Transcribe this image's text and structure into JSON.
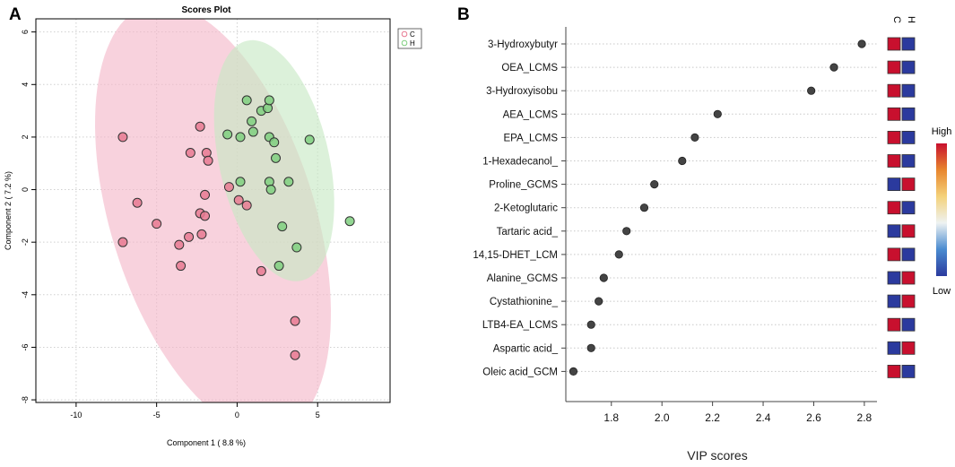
{
  "chart_data": [
    {
      "panel_label": "A",
      "type": "scatter",
      "title": "Scores Plot",
      "xlabel": "Component 1 ( 8.8 %)",
      "ylabel": "Component 2 ( 7.2 %)",
      "xlim": [
        -12.5,
        9.5
      ],
      "ylim": [
        -8.1,
        6.5
      ],
      "xticks": [
        -10,
        -5,
        0,
        5
      ],
      "yticks": [
        -8,
        -6,
        -4,
        -2,
        0,
        2,
        4,
        6
      ],
      "grid": true,
      "legend_position": "top-right",
      "colors": {
        "C": "#e87a92",
        "H": "#7fcf7f"
      },
      "series": [
        {
          "name": "C",
          "color": "#e87a92",
          "ellipse": {
            "center": [
              -1.5,
              -1.1
            ],
            "rx": 9.35,
            "ry": 5.75,
            "angle_deg": -52,
            "fill": "#f4b6c8"
          },
          "points": [
            [
              -7.1,
              2.0
            ],
            [
              -7.1,
              -2.0
            ],
            [
              -6.2,
              -0.5
            ],
            [
              -5.0,
              -1.3
            ],
            [
              -3.6,
              -2.1
            ],
            [
              -3.5,
              -2.9
            ],
            [
              -3.0,
              -1.8
            ],
            [
              -2.9,
              1.4
            ],
            [
              -2.3,
              2.4
            ],
            [
              -2.3,
              -0.9
            ],
            [
              -2.2,
              -1.7
            ],
            [
              -2.0,
              -1.0
            ],
            [
              -2.0,
              -0.2
            ],
            [
              -1.9,
              1.4
            ],
            [
              -1.8,
              1.1
            ],
            [
              -0.5,
              0.1
            ],
            [
              0.1,
              -0.4
            ],
            [
              0.6,
              -0.6
            ],
            [
              1.5,
              -3.1
            ],
            [
              3.6,
              -5.0
            ],
            [
              3.6,
              -6.3
            ]
          ]
        },
        {
          "name": "H",
          "color": "#7fcf7f",
          "ellipse": {
            "center": [
              2.3,
              1.1
            ],
            "rx": 4.96,
            "ry": 3.22,
            "angle_deg": -60,
            "fill": "#c6e9c4"
          },
          "points": [
            [
              0.6,
              3.4
            ],
            [
              1.5,
              3.0
            ],
            [
              1.9,
              3.1
            ],
            [
              2.0,
              3.4
            ],
            [
              0.9,
              2.6
            ],
            [
              1.0,
              2.2
            ],
            [
              2.0,
              2.0
            ],
            [
              2.3,
              1.8
            ],
            [
              2.4,
              1.2
            ],
            [
              4.5,
              1.9
            ],
            [
              -0.6,
              2.1
            ],
            [
              0.2,
              2.0
            ],
            [
              0.2,
              0.3
            ],
            [
              2.0,
              0.3
            ],
            [
              2.1,
              0.0
            ],
            [
              3.2,
              0.3
            ],
            [
              2.8,
              -1.4
            ],
            [
              3.7,
              -2.2
            ],
            [
              2.6,
              -2.9
            ],
            [
              7.0,
              -1.2
            ]
          ]
        }
      ]
    },
    {
      "panel_label": "B",
      "type": "scatter",
      "xlabel": "VIP scores",
      "xlim": [
        1.62,
        2.85
      ],
      "xticks": [
        "1.8",
        "2.0",
        "2.2",
        "2.4",
        "2.6",
        "2.8"
      ],
      "categories": [
        "3-Hydroxybutyr",
        "OEA_LCMS",
        "3-Hydroxyisobu",
        "AEA_LCMS",
        "EPA_LCMS",
        "1-Hexadecanol_",
        "Proline_GCMS",
        "2-Ketoglutaric",
        "Tartaric acid_",
        "14,15-DHET_LCM",
        "Alanine_GCMS",
        "Cystathionine_",
        "LTB4-EA_LCMS",
        "Aspartic acid_",
        "Oleic acid_GCM"
      ],
      "values": [
        2.79,
        2.68,
        2.59,
        2.22,
        2.13,
        2.08,
        1.97,
        1.93,
        1.86,
        1.83,
        1.77,
        1.75,
        1.72,
        1.72,
        1.65
      ],
      "heatmap": {
        "columns": [
          "C",
          "H"
        ],
        "levels": [
          [
            "high",
            "low"
          ],
          [
            "high",
            "low"
          ],
          [
            "high",
            "low"
          ],
          [
            "high",
            "low"
          ],
          [
            "high",
            "low"
          ],
          [
            "high",
            "low"
          ],
          [
            "low",
            "high"
          ],
          [
            "high",
            "low"
          ],
          [
            "low",
            "high"
          ],
          [
            "high",
            "low"
          ],
          [
            "low",
            "high"
          ],
          [
            "low",
            "high"
          ],
          [
            "high",
            "low"
          ],
          [
            "low",
            "high"
          ],
          [
            "high",
            "low"
          ]
        ],
        "colors": {
          "high": "#c8102e",
          "low": "#2b3a9e"
        }
      },
      "colorbar": {
        "high_label": "High",
        "low_label": "Low",
        "stops": [
          "#2b3a9e",
          "#4a8bd0",
          "#eef2f2",
          "#f4d27a",
          "#e8862e",
          "#c8102e"
        ]
      }
    }
  ]
}
